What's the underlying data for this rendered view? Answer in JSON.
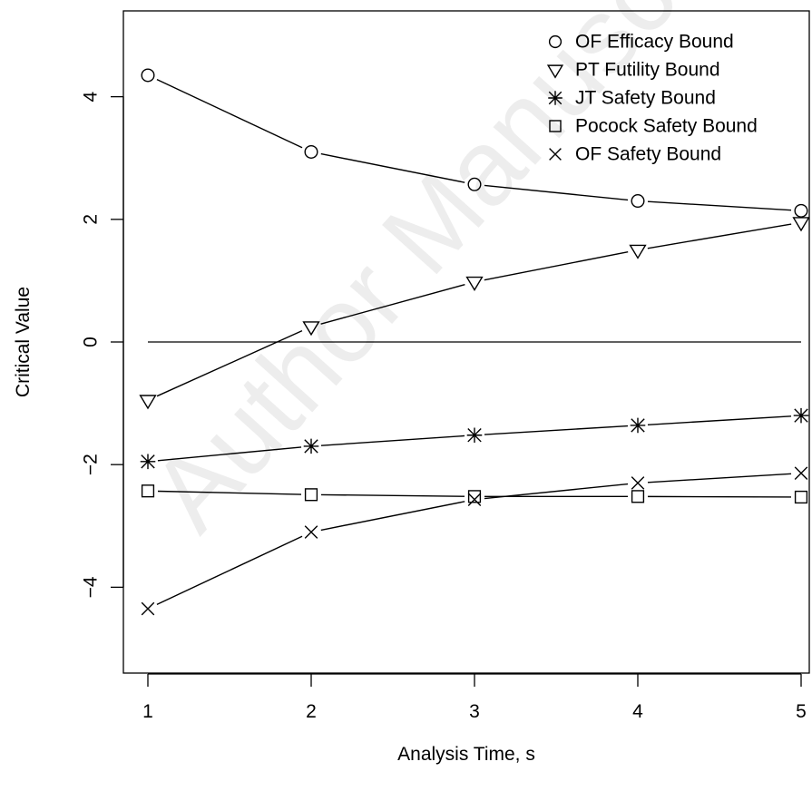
{
  "watermark": "Author Manuscript",
  "chart_data": {
    "type": "line",
    "title": "",
    "xlabel": "Analysis Time, s",
    "ylabel": "Critical Value",
    "xlim": [
      0.85,
      5.05
    ],
    "ylim": [
      -5.4,
      5.4
    ],
    "x_ticks": [
      1,
      2,
      3,
      4,
      5
    ],
    "y_ticks": [
      -4,
      -2,
      0,
      2,
      4
    ],
    "grid": false,
    "legend_position": "top-right",
    "reference_line": {
      "y": 0
    },
    "x": [
      1,
      2,
      3,
      4,
      5
    ],
    "series": [
      {
        "name": "OF Efficacy Bound",
        "marker": "circle",
        "values": [
          4.35,
          3.1,
          2.57,
          2.3,
          2.14
        ]
      },
      {
        "name": "PT Futility Bound",
        "marker": "triangle-down",
        "values": [
          -0.95,
          0.25,
          0.98,
          1.5,
          1.95
        ]
      },
      {
        "name": "JT Safety Bound",
        "marker": "asterisk",
        "values": [
          -1.95,
          -1.7,
          -1.52,
          -1.36,
          -1.2
        ]
      },
      {
        "name": "Pocock Safety Bound",
        "marker": "square",
        "values": [
          -2.43,
          -2.49,
          -2.52,
          -2.52,
          -2.53
        ]
      },
      {
        "name": "OF Safety Bound",
        "marker": "cross",
        "values": [
          -4.35,
          -3.1,
          -2.57,
          -2.3,
          -2.14
        ]
      }
    ]
  }
}
